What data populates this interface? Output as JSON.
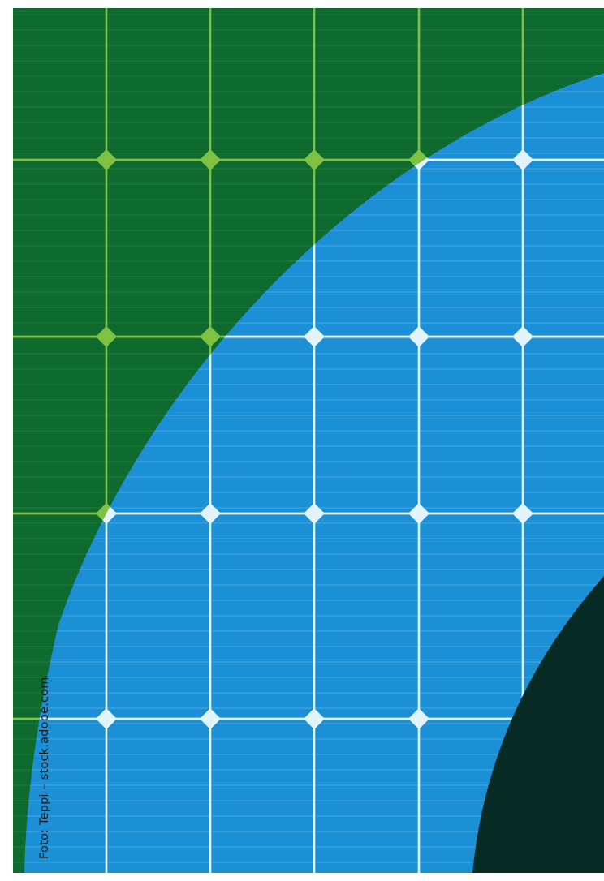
{
  "photo_credit": "Foto: Teppi – stock.adobe.com",
  "subject": "solar-panel-cells",
  "colors": {
    "page_background": "#ffffff",
    "green_overlay": "#0f6a2f",
    "green_band": "#1f8a3a",
    "green_bus": "#7fc242",
    "blue_overlay": "#1b90d6",
    "blue_band": "#5fb4e6",
    "blue_bus": "#e3f3fb",
    "dark_corner": "#062b24",
    "credit_text": "#1a1a1a"
  }
}
